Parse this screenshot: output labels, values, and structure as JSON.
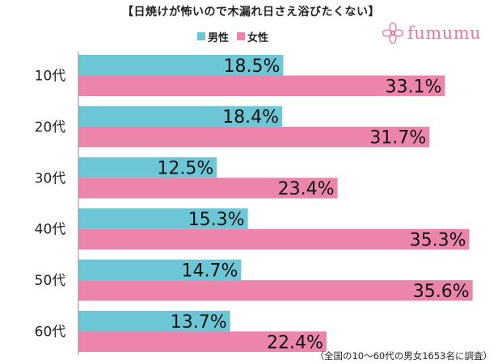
{
  "title": "【日焼けが怖いので木漏れ日さえ浴びたくない】",
  "logo": {
    "text": "fumumu",
    "icon": "flower-icon",
    "color": "#e8779f"
  },
  "note": "（全国の10～60代の男女1653名に調査）",
  "colors": {
    "male": "#6dc6d6",
    "female": "#ec85ab"
  },
  "chart_data": {
    "type": "bar",
    "orientation": "horizontal",
    "categories": [
      "10代",
      "20代",
      "30代",
      "40代",
      "50代",
      "60代"
    ],
    "series": [
      {
        "name": "男性",
        "values": [
          18.5,
          18.4,
          12.5,
          15.3,
          14.7,
          13.7
        ]
      },
      {
        "name": "女性",
        "values": [
          33.1,
          31.7,
          23.4,
          35.3,
          35.6,
          22.4
        ]
      }
    ],
    "unit": "%",
    "xlim": [
      0,
      36.5
    ],
    "grid": false,
    "legend": "top-center"
  }
}
